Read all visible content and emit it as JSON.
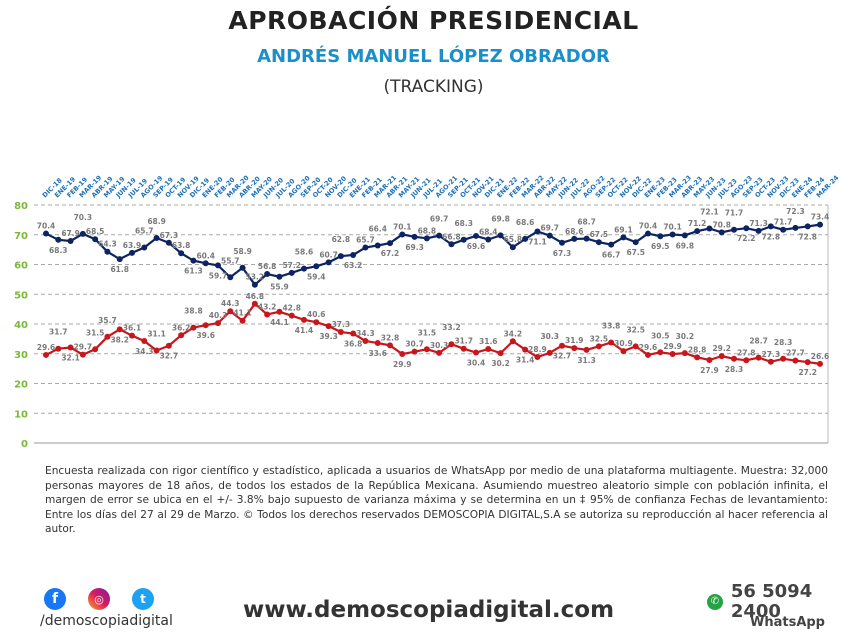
{
  "header": {
    "title": "APROBACIÓN PRESIDENCIAL",
    "subtitle": "ANDRÉS MANUEL LÓPEZ OBRADOR",
    "tracking": "(TRACKING)"
  },
  "watermark": "DEMOSCOPIA DIGITAL",
  "chart_data": {
    "type": "line",
    "ylim": [
      0,
      80
    ],
    "yticks": [
      0,
      10,
      20,
      30,
      40,
      50,
      60,
      70,
      80
    ],
    "grid": true,
    "categories": [
      "DIC-18",
      "ENE-19",
      "FEB-19",
      "MAR-19",
      "ABR-19",
      "MAY-19",
      "JUN-19",
      "JUL-19",
      "AGO-19",
      "SEP-19",
      "OCT-19",
      "NOV-19",
      "DIC-19",
      "ENE-20",
      "FEB-20",
      "MAR-20",
      "ABR-20",
      "MAY-20",
      "JUN-20",
      "JUL-20",
      "AGO-20",
      "SEP-20",
      "OCT-20",
      "NOV-20",
      "DIC-20",
      "ENE-21",
      "FEB-21",
      "MAR-21",
      "ABR-21",
      "MAY-21",
      "JUN-21",
      "JUL-21",
      "AGO-21",
      "SEP-21",
      "OCT-21",
      "NOV-21",
      "DIC-21",
      "ENE-22",
      "FEB-22",
      "MAR-22",
      "ABR-22",
      "MAY-22",
      "JUN-22",
      "JUL-22",
      "AGO-22",
      "SEP-22",
      "OCT-22",
      "NOV-22",
      "DIC-22",
      "ENE-23",
      "FEB-23",
      "MAR-23",
      "ABR-23",
      "MAY-23",
      "JUN-23",
      "JUL-23",
      "AGO-23",
      "SEP-23",
      "OCT-23",
      "NOV-23",
      "DIC-23",
      "ENE-24",
      "FEB-24",
      "MAR-24"
    ],
    "series": [
      {
        "color": "#0d2461",
        "values": [
          70.4,
          68.3,
          67.9,
          70.3,
          68.5,
          64.3,
          61.8,
          63.9,
          65.7,
          68.9,
          67.3,
          63.8,
          61.3,
          60.4,
          59.7,
          55.7,
          58.9,
          53.2,
          56.8,
          55.9,
          57.2,
          58.6,
          59.4,
          60.7,
          62.8,
          63.2,
          65.7,
          66.4,
          67.2,
          70.1,
          69.3,
          68.8,
          69.7,
          66.8,
          68.3,
          69.6,
          68.4,
          69.8,
          65.8,
          68.6,
          71.1,
          69.7,
          67.3,
          68.6,
          68.7,
          67.5,
          66.7,
          69.1,
          67.5,
          70.4,
          69.5,
          70.1,
          69.8,
          71.2,
          72.1,
          70.8,
          71.7,
          72.2,
          71.3,
          72.8,
          71.7,
          72.3,
          72.8,
          73.4
        ]
      },
      {
        "color": "#c8161d",
        "values": [
          29.6,
          31.7,
          32.1,
          29.7,
          31.5,
          35.7,
          38.2,
          36.1,
          34.3,
          31.1,
          32.7,
          36.2,
          38.8,
          39.6,
          40.3,
          44.3,
          41.1,
          46.8,
          43.2,
          44.1,
          42.8,
          41.4,
          40.6,
          39.3,
          37.3,
          36.8,
          34.3,
          33.6,
          32.8,
          29.9,
          30.7,
          31.5,
          30.3,
          33.2,
          31.7,
          30.4,
          31.6,
          30.2,
          34.2,
          31.4,
          28.9,
          30.3,
          32.7,
          31.9,
          31.3,
          32.5,
          33.8,
          30.9,
          32.5,
          29.6,
          30.5,
          29.9,
          30.2,
          28.8,
          27.9,
          29.2,
          28.3,
          27.8,
          28.7,
          27.3,
          28.3,
          27.7,
          27.2,
          26.6
        ]
      }
    ]
  },
  "footnote": "Encuesta realizada con rigor científico y estadístico, aplicada a usuarios de WhatsApp por medio de una plataforma multiagente. Muestra: 32,000 personas mayores de 18 años, de todos los estados de la República Mexicana. Asumiendo muestreo aleatorio simple con población infinita, el margen de error se ubica en el +/- 3.8% bajo supuesto de varianza máxima y se determina en un ‡ 95% de confianza Fechas de levantamiento: Entre los días del 27 al 29 de Marzo. © Todos los derechos reservados DEMOSCOPIA DIGITAL,S.A se autoriza su reproducción al hacer referencia al autor.",
  "footer": {
    "social_handle": "/demoscopiadigital",
    "website": "www.demoscopiadigital.com",
    "phone": "56 5094 2400",
    "whatsapp_label": "WhatsApp",
    "icons": [
      "facebook-icon",
      "instagram-icon",
      "twitter-icon",
      "whatsapp-icon"
    ]
  }
}
